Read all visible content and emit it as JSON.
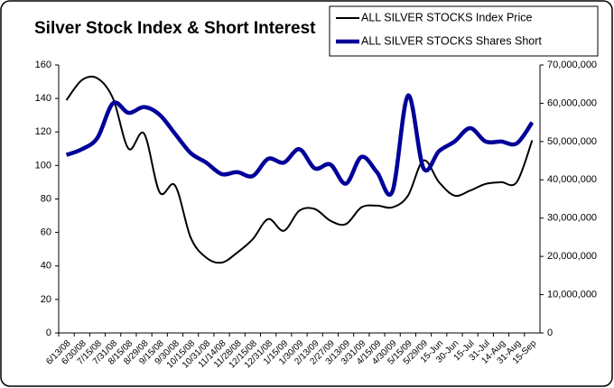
{
  "chart_data": {
    "type": "line",
    "title": "Silver Stock Index & Short Interest",
    "categories": [
      "6/13/08",
      "6/30/08",
      "7/15/08",
      "7/31/08",
      "8/15/08",
      "8/29/08",
      "9/15/08",
      "9/30/08",
      "10/15/08",
      "10/31/08",
      "11/14/08",
      "11/28/08",
      "12/15/08",
      "12/31/08",
      "1/15/09",
      "1/30/09",
      "2/13/09",
      "2/27/09",
      "3/13/09",
      "3/31/09",
      "4/15/09",
      "4/30/09",
      "5/15/09",
      "5/29/09",
      "15-Jun",
      "30-Jun",
      "15-Jul",
      "31-Jul",
      "14-Aug",
      "31-Aug",
      "15-Sep"
    ],
    "series": [
      {
        "name": "ALL SILVER STOCKS Index Price",
        "color": "#000000",
        "axis": "y",
        "values": [
          139,
          151,
          152,
          140,
          110,
          119,
          84,
          88,
          57,
          45,
          42,
          48,
          56,
          68,
          61,
          73,
          74,
          67,
          65,
          75,
          76,
          75,
          82,
          103,
          90,
          82,
          85,
          89,
          90,
          90,
          115
        ]
      },
      {
        "name": "ALL SILVER STOCKS Shares Short",
        "color": "#000099",
        "axis": "y2",
        "values": [
          46500000,
          48000000,
          51000000,
          60000000,
          57500000,
          59000000,
          57000000,
          52000000,
          47000000,
          44500000,
          41500000,
          42000000,
          41000000,
          45500000,
          44500000,
          48000000,
          43000000,
          44000000,
          39000000,
          46000000,
          42000000,
          37000000,
          62000000,
          43000000,
          47500000,
          50000000,
          53500000,
          50000000,
          50000000,
          49500000,
          55000000
        ]
      }
    ],
    "ylim": [
      0,
      160
    ],
    "yticks": [
      0,
      20,
      40,
      60,
      80,
      100,
      120,
      140,
      160
    ],
    "y2lim": [
      0,
      70000000
    ],
    "y2ticks": [
      0,
      {
        "value": 10000000,
        "label": "10,000,000"
      },
      {
        "value": 20000000,
        "label": "20,000,000"
      },
      {
        "value": 30000000,
        "label": "30,000,000"
      },
      {
        "value": 40000000,
        "label": "40,000,000"
      },
      {
        "value": 50000000,
        "label": "50,000,000"
      },
      {
        "value": 60000000,
        "label": "60,000,000"
      },
      {
        "value": 70000000,
        "label": "70,000,000"
      }
    ],
    "grid": false,
    "legend": "top-right"
  }
}
